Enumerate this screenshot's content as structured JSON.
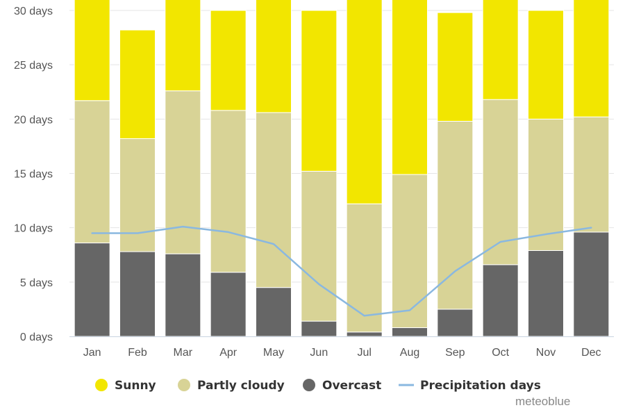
{
  "chart_data": {
    "type": "bar",
    "stacked": true,
    "categories": [
      "Jan",
      "Feb",
      "Mar",
      "Apr",
      "May",
      "Jun",
      "Jul",
      "Aug",
      "Sep",
      "Oct",
      "Nov",
      "Dec"
    ],
    "series": [
      {
        "name": "Overcast",
        "color": "#666666",
        "values": [
          8.6,
          7.8,
          7.6,
          5.9,
          4.5,
          1.4,
          0.4,
          0.8,
          2.5,
          6.6,
          7.9,
          9.6
        ]
      },
      {
        "name": "Partly cloudy",
        "color": "#d8d396",
        "values": [
          13.1,
          10.4,
          15.0,
          14.9,
          16.1,
          13.8,
          11.8,
          14.1,
          17.3,
          15.2,
          12.1,
          10.6
        ]
      },
      {
        "name": "Sunny",
        "color": "#f2e600",
        "values": [
          9.3,
          10.0,
          8.4,
          9.2,
          10.4,
          14.8,
          18.8,
          16.1,
          10.0,
          9.2,
          10.0,
          10.8
        ]
      }
    ],
    "line_series": {
      "name": "Precipitation days",
      "color": "#8ab8e0",
      "values": [
        9.5,
        9.5,
        10.1,
        9.6,
        8.5,
        4.8,
        1.9,
        2.4,
        6.0,
        8.7,
        9.4,
        10.0
      ]
    },
    "ylim": [
      0,
      30
    ],
    "yticks": [
      {
        "value": 0,
        "label": "0 days"
      },
      {
        "value": 5,
        "label": "5 days"
      },
      {
        "value": 10,
        "label": "10 days"
      },
      {
        "value": 15,
        "label": "15 days"
      },
      {
        "value": 20,
        "label": "20 days"
      },
      {
        "value": 25,
        "label": "25 days"
      },
      {
        "value": 30,
        "label": "30 days"
      }
    ],
    "grid": true,
    "legend_position": "bottom",
    "legend": [
      {
        "label": "Sunny",
        "color": "#f2e600",
        "marker": "circle"
      },
      {
        "label": "Partly cloudy",
        "color": "#d8d396",
        "marker": "circle"
      },
      {
        "label": "Overcast",
        "color": "#666666",
        "marker": "circle"
      },
      {
        "label": "Precipitation days",
        "color": "#8ab8e0",
        "marker": "line"
      }
    ]
  },
  "credit": "meteoblue"
}
